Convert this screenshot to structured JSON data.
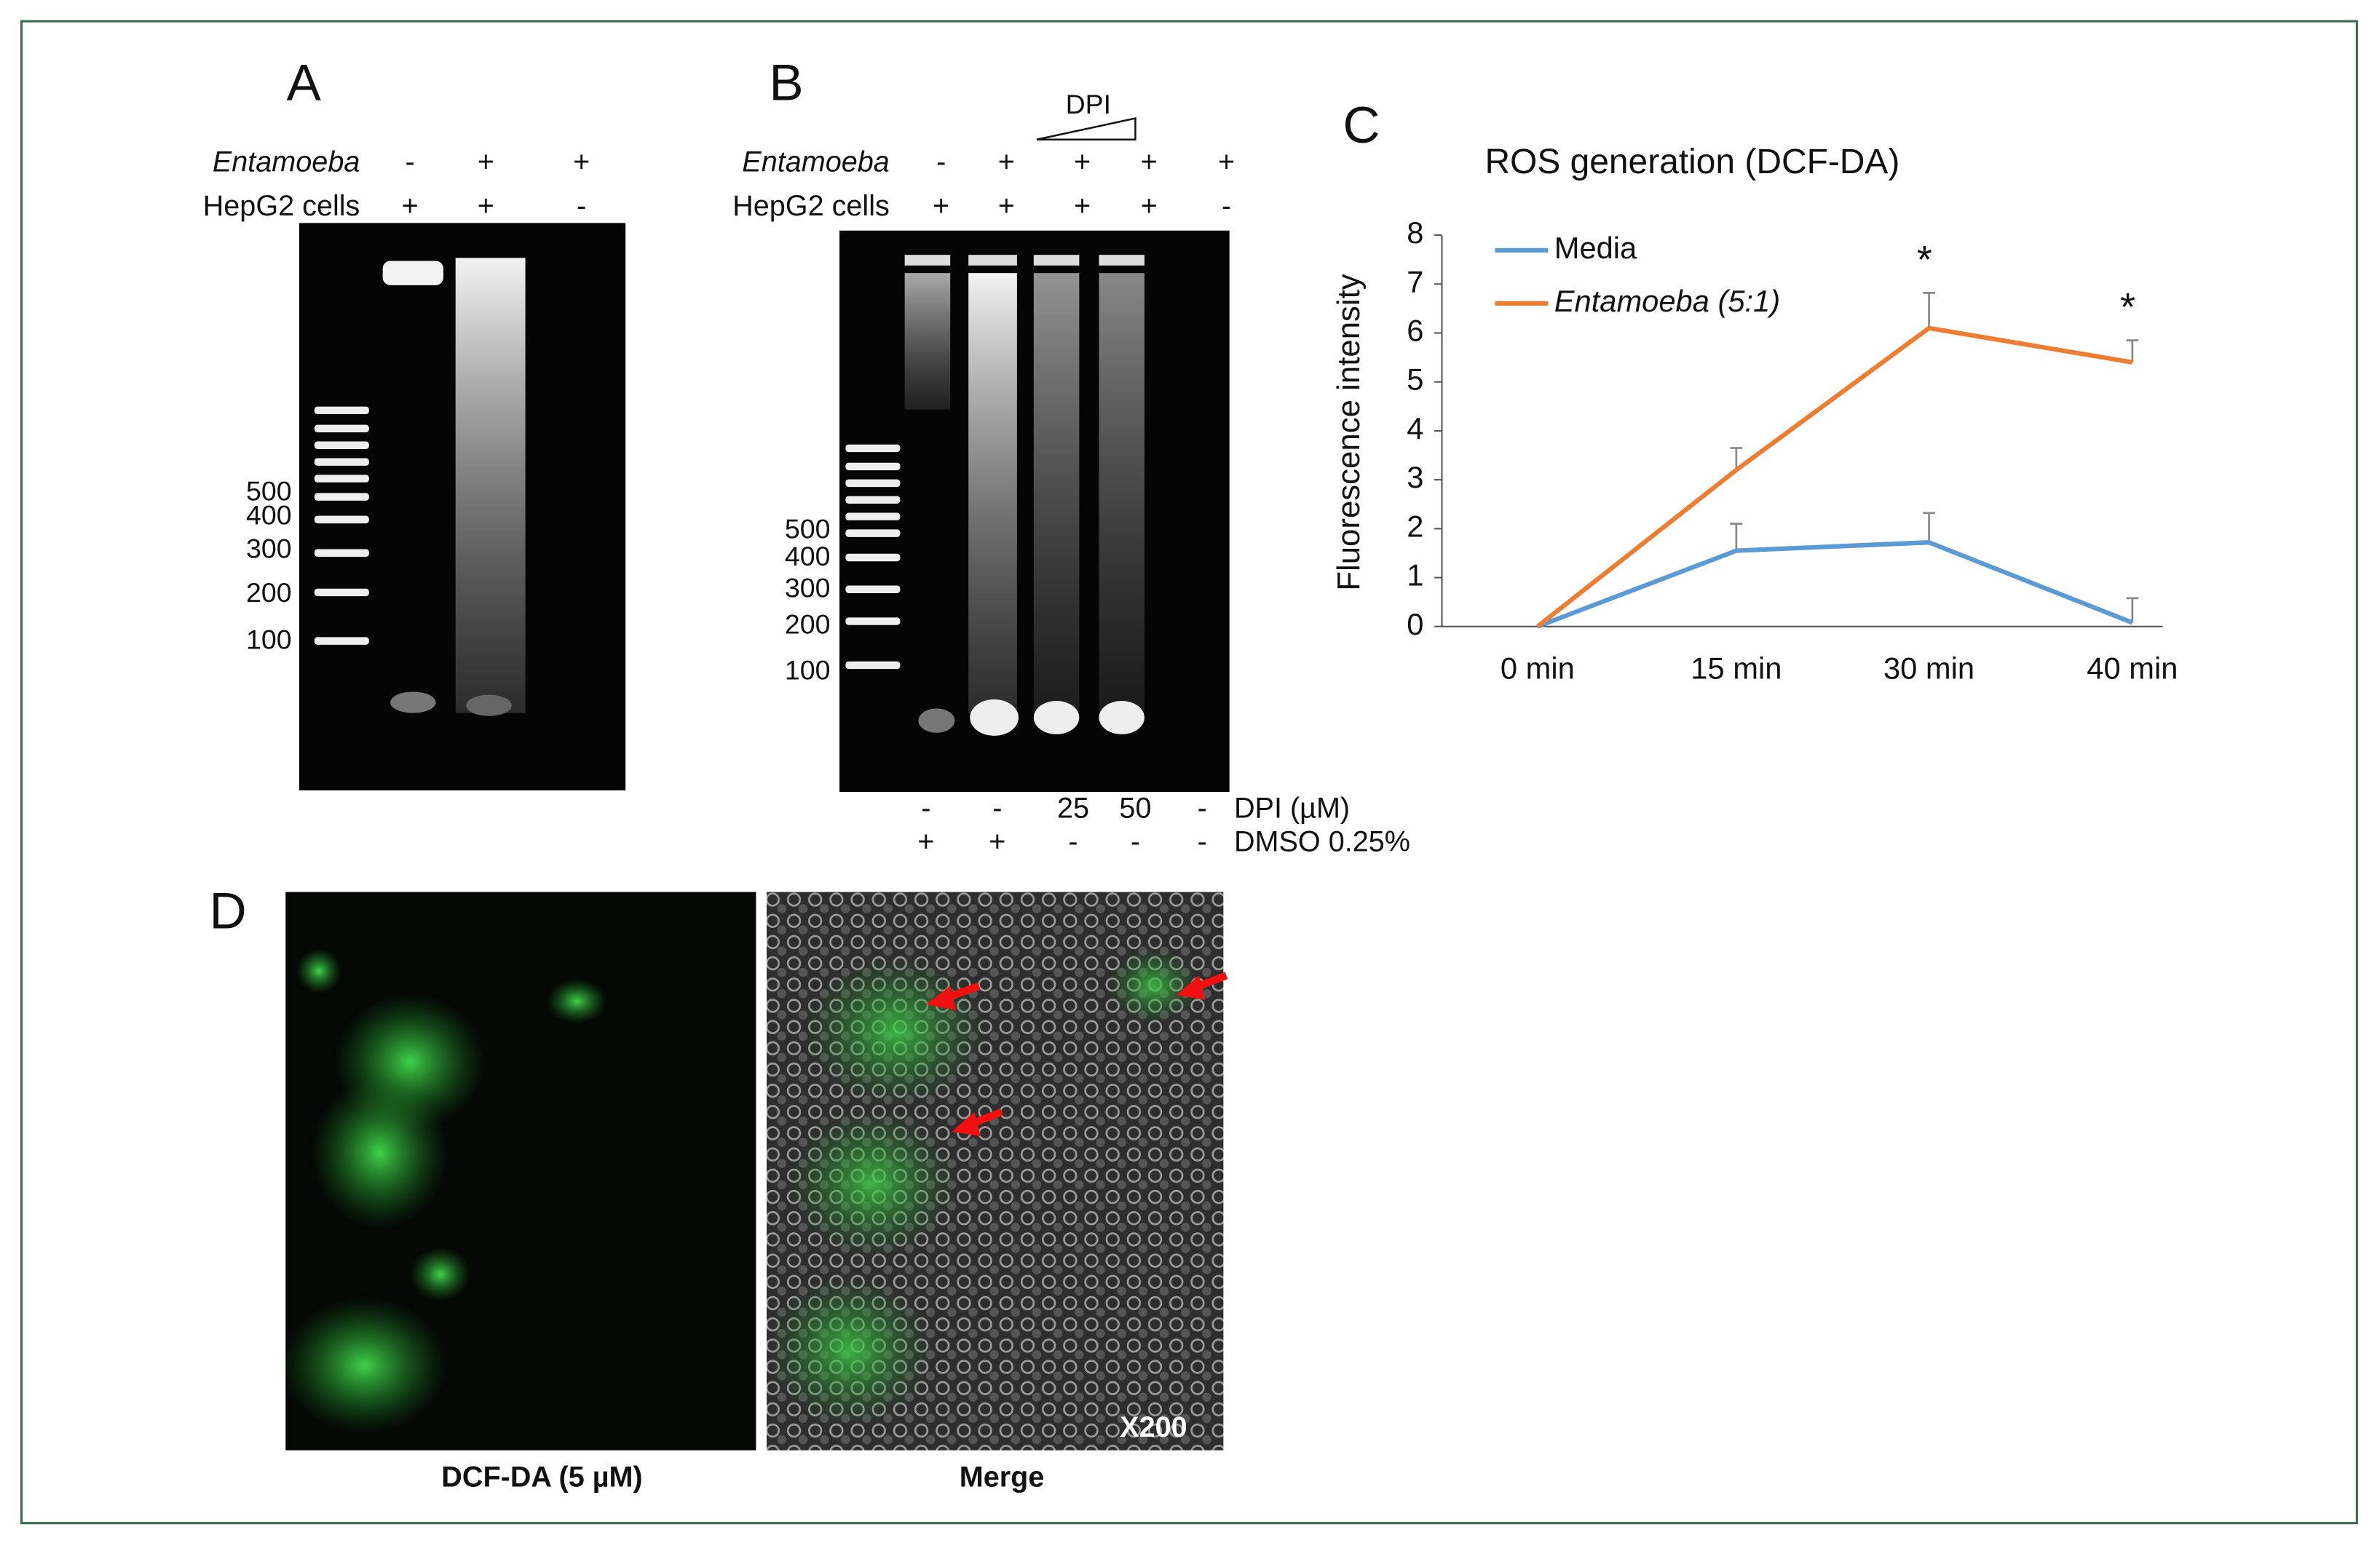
{
  "panels": {
    "a": {
      "label": "A",
      "rows": [
        {
          "name": "Entamoeba",
          "marks": [
            "-",
            "+",
            "+"
          ]
        },
        {
          "name": "HepG2 cells",
          "marks": [
            "+",
            "+",
            "-"
          ]
        }
      ],
      "ladder": [
        "500",
        "400",
        "300",
        "200",
        "100"
      ]
    },
    "b": {
      "label": "B",
      "dpi_label": "DPI",
      "rows": [
        {
          "name": "Entamoeba",
          "marks": [
            "-",
            "+",
            "+",
            "+",
            "+"
          ]
        },
        {
          "name": "HepG2 cells",
          "marks": [
            "+",
            "+",
            "+",
            "+",
            "-"
          ]
        }
      ],
      "ladder": [
        "500",
        "400",
        "300",
        "200",
        "100"
      ],
      "bottom_rows": [
        {
          "name": "DPI (µM)",
          "marks": [
            "-",
            "-",
            "25",
            "50",
            "-"
          ]
        },
        {
          "name": "DMSO 0.25%",
          "marks": [
            "+",
            "+",
            "-",
            "-",
            "-"
          ]
        }
      ]
    },
    "d": {
      "label": "D",
      "images": [
        {
          "caption": "DCF-DA (5 µM)"
        },
        {
          "caption": "Merge",
          "magnification": "X200"
        }
      ]
    }
  },
  "chart_data": {
    "type": "line",
    "panel_label": "C",
    "title": "ROS generation (DCF-DA)",
    "y_label": "Fluorescence intensity",
    "categories": [
      "0 min",
      "15 min",
      "30 min",
      "40 min"
    ],
    "series": [
      {
        "name": "Media",
        "color": "#5b9bd5",
        "values": [
          0,
          1.55,
          1.72,
          0.08
        ],
        "errors": [
          null,
          0.55,
          0.6,
          0.5
        ]
      },
      {
        "name": "Entamoeba (5:1)",
        "color": "#ed7d31",
        "values": [
          0,
          3.2,
          6.1,
          5.4
        ],
        "errors": [
          null,
          0.45,
          0.72,
          0.45
        ]
      }
    ],
    "annotations": [
      "*",
      "*"
    ],
    "ylim": [
      0,
      8
    ],
    "yticks": [
      0,
      1,
      2,
      3,
      4,
      5,
      6,
      7,
      8
    ]
  }
}
